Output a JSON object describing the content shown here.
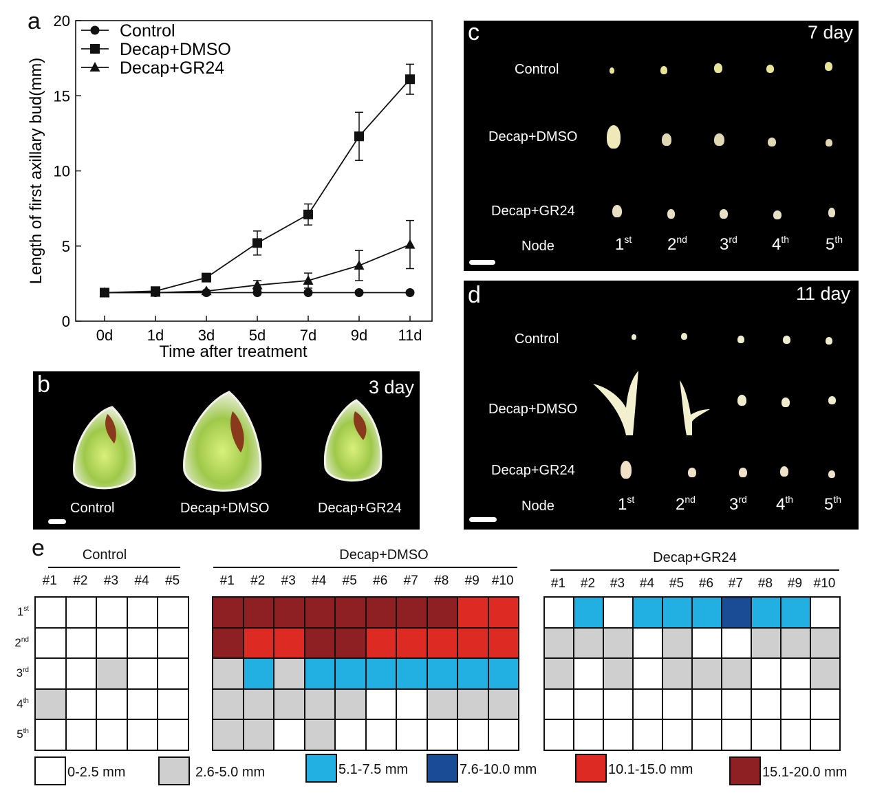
{
  "colors": {
    "0-2.5": "#ffffff",
    "2.6-5.0": "#cfcfcf",
    "5.1-7.5": "#22b0e3",
    "7.6-10.0": "#1a4c96",
    "10.1-15.0": "#dd2a22",
    "15.1-20.0": "#8e1f22"
  },
  "panel_a": {
    "letter": "a",
    "chart_data": {
      "type": "line",
      "title": "",
      "xlabel": "Time after treatment",
      "ylabel": "Length of first axillary bud(mm)",
      "categories": [
        "0d",
        "1d",
        "3d",
        "5d",
        "7d",
        "9d",
        "11d"
      ],
      "ylim": [
        0,
        20
      ],
      "yticks": [
        "0",
        "5",
        "10",
        "15",
        "20"
      ],
      "series": [
        {
          "name": "Control",
          "marker": "circle",
          "values": [
            1.9,
            1.9,
            1.9,
            1.9,
            1.9,
            1.9,
            1.9
          ],
          "errors": [
            0,
            0,
            0,
            0,
            0,
            0,
            0
          ]
        },
        {
          "name": "Decap+DMSO",
          "marker": "square",
          "values": [
            1.9,
            2.0,
            2.9,
            5.2,
            7.1,
            12.3,
            16.1
          ],
          "errors": [
            0,
            0,
            0,
            0.8,
            0.7,
            1.6,
            1.0
          ]
        },
        {
          "name": "Decap+GR24",
          "marker": "triangle",
          "values": [
            1.9,
            1.9,
            2.0,
            2.4,
            2.7,
            3.7,
            5.1
          ],
          "errors": [
            0,
            0,
            0,
            0.3,
            0.5,
            1.0,
            1.6
          ]
        }
      ]
    }
  },
  "panel_b": {
    "letter": "b",
    "day": "3 day",
    "labels": [
      "Control",
      "Decap+DMSO",
      "Decap+GR24"
    ]
  },
  "panel_c": {
    "letter": "c",
    "day": "7 day",
    "rows": [
      "Control",
      "Decap+DMSO",
      "Decap+GR24"
    ],
    "node_label": "Node",
    "nodes": [
      {
        "num": "1",
        "suffix": "st"
      },
      {
        "num": "2",
        "suffix": "nd"
      },
      {
        "num": "3",
        "suffix": "rd"
      },
      {
        "num": "4",
        "suffix": "th"
      },
      {
        "num": "5",
        "suffix": "th"
      }
    ]
  },
  "panel_d": {
    "letter": "d",
    "day": "11 day",
    "rows": [
      "Control",
      "Decap+DMSO",
      "Decap+GR24"
    ],
    "node_label": "Node",
    "nodes": [
      {
        "num": "1",
        "suffix": "st"
      },
      {
        "num": "2",
        "suffix": "nd"
      },
      {
        "num": "3",
        "suffix": "rd"
      },
      {
        "num": "4",
        "suffix": "th"
      },
      {
        "num": "5",
        "suffix": "th"
      }
    ]
  },
  "panel_e": {
    "letter": "e",
    "row_labels": [
      {
        "num": "1",
        "suffix": "st"
      },
      {
        "num": "2",
        "suffix": "nd"
      },
      {
        "num": "3",
        "suffix": "rd"
      },
      {
        "num": "4",
        "suffix": "th"
      },
      {
        "num": "5",
        "suffix": "th"
      }
    ],
    "grids": [
      {
        "title": "Control",
        "cols": [
          "#1",
          "#2",
          "#3",
          "#4",
          "#5"
        ],
        "rows": [
          [
            "0-2.5",
            "0-2.5",
            "0-2.5",
            "0-2.5",
            "0-2.5"
          ],
          [
            "0-2.5",
            "0-2.5",
            "0-2.5",
            "0-2.5",
            "0-2.5"
          ],
          [
            "0-2.5",
            "0-2.5",
            "2.6-5.0",
            "0-2.5",
            "0-2.5"
          ],
          [
            "2.6-5.0",
            "0-2.5",
            "0-2.5",
            "0-2.5",
            "0-2.5"
          ],
          [
            "0-2.5",
            "0-2.5",
            "0-2.5",
            "0-2.5",
            "0-2.5"
          ]
        ]
      },
      {
        "title": "Decap+DMSO",
        "cols": [
          "#1",
          "#2",
          "#3",
          "#4",
          "#5",
          "#6",
          "#7",
          "#8",
          "#9",
          "#10"
        ],
        "rows": [
          [
            "15.1-20.0",
            "15.1-20.0",
            "15.1-20.0",
            "15.1-20.0",
            "15.1-20.0",
            "15.1-20.0",
            "15.1-20.0",
            "15.1-20.0",
            "10.1-15.0",
            "10.1-15.0"
          ],
          [
            "15.1-20.0",
            "10.1-15.0",
            "10.1-15.0",
            "15.1-20.0",
            "15.1-20.0",
            "10.1-15.0",
            "10.1-15.0",
            "10.1-15.0",
            "10.1-15.0",
            "10.1-15.0"
          ],
          [
            "2.6-5.0",
            "5.1-7.5",
            "2.6-5.0",
            "5.1-7.5",
            "5.1-7.5",
            "5.1-7.5",
            "5.1-7.5",
            "5.1-7.5",
            "5.1-7.5",
            "5.1-7.5"
          ],
          [
            "2.6-5.0",
            "2.6-5.0",
            "2.6-5.0",
            "2.6-5.0",
            "2.6-5.0",
            "0-2.5",
            "0-2.5",
            "2.6-5.0",
            "2.6-5.0",
            "2.6-5.0"
          ],
          [
            "2.6-5.0",
            "2.6-5.0",
            "0-2.5",
            "2.6-5.0",
            "0-2.5",
            "0-2.5",
            "0-2.5",
            "0-2.5",
            "0-2.5",
            "0-2.5"
          ]
        ]
      },
      {
        "title": "Decap+GR24",
        "cols": [
          "#1",
          "#2",
          "#3",
          "#4",
          "#5",
          "#6",
          "#7",
          "#8",
          "#9",
          "#10"
        ],
        "rows": [
          [
            "0-2.5",
            "5.1-7.5",
            "0-2.5",
            "5.1-7.5",
            "5.1-7.5",
            "5.1-7.5",
            "7.6-10.0",
            "5.1-7.5",
            "5.1-7.5",
            "0-2.5"
          ],
          [
            "2.6-5.0",
            "2.6-5.0",
            "2.6-5.0",
            "0-2.5",
            "2.6-5.0",
            "0-2.5",
            "0-2.5",
            "2.6-5.0",
            "2.6-5.0",
            "2.6-5.0"
          ],
          [
            "2.6-5.0",
            "0-2.5",
            "2.6-5.0",
            "0-2.5",
            "2.6-5.0",
            "2.6-5.0",
            "2.6-5.0",
            "0-2.5",
            "0-2.5",
            "2.6-5.0"
          ],
          [
            "0-2.5",
            "0-2.5",
            "0-2.5",
            "0-2.5",
            "0-2.5",
            "0-2.5",
            "0-2.5",
            "0-2.5",
            "0-2.5",
            "0-2.5"
          ],
          [
            "0-2.5",
            "0-2.5",
            "0-2.5",
            "0-2.5",
            "0-2.5",
            "0-2.5",
            "0-2.5",
            "0-2.5",
            "0-2.5",
            "0-2.5"
          ]
        ]
      }
    ],
    "legend": [
      {
        "key": "0-2.5",
        "label": "0-2.5 mm"
      },
      {
        "key": "2.6-5.0",
        "label": "2.6-5.0 mm"
      },
      {
        "key": "5.1-7.5",
        "label": "5.1-7.5 mm"
      },
      {
        "key": "7.6-10.0",
        "label": "7.6-10.0 mm"
      },
      {
        "key": "10.1-15.0",
        "label": "10.1-15.0 mm"
      },
      {
        "key": "15.1-20.0",
        "label": "15.1-20.0 mm"
      }
    ]
  }
}
